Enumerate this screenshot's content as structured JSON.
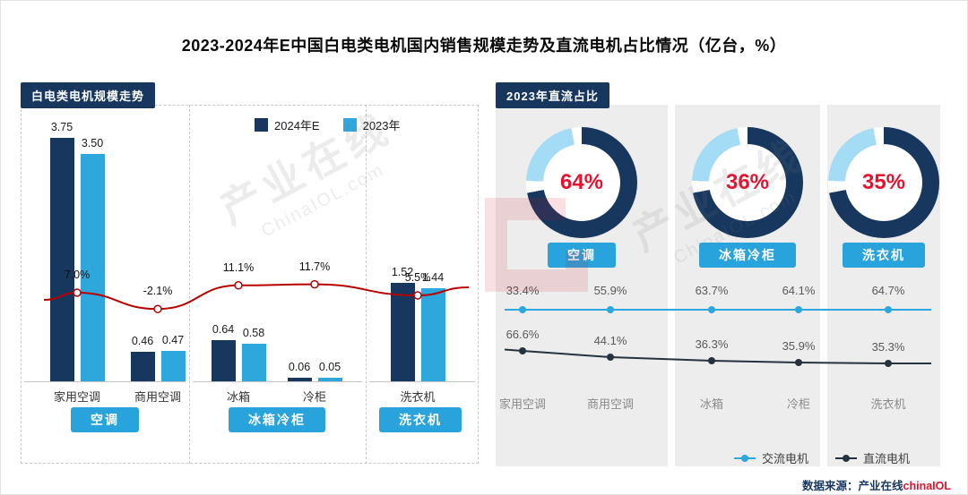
{
  "title": "2023-2024年E中国白电类电机国内销售规模走势及直流电机占比情况（亿台，%）",
  "colors": {
    "navy": "#17375e",
    "bar_blue": "#2ea7dc",
    "badge_blue": "#29a3db",
    "light_blue_arc": "#a5dcf5",
    "growth_line_red": "#b80000",
    "pct_red": "#e8112d",
    "panel_gray": "#ededed",
    "label_gray": "#595959",
    "dark_line": "#26323e"
  },
  "left_panel": {
    "header": "白电类电机规模走势",
    "legend": [
      {
        "label": "2024年E"
      },
      {
        "label": "2023年"
      }
    ],
    "group_badges": [
      "空调",
      "冰箱冷柜",
      "洗衣机"
    ]
  },
  "right_panel": {
    "header": "2023年直流占比",
    "donuts": [
      {
        "label": "空调",
        "pct": "64%"
      },
      {
        "label": "冰箱冷柜",
        "pct": "36%"
      },
      {
        "label": "洗衣机",
        "pct": "35%"
      }
    ],
    "legend": [
      {
        "label": "交流电机"
      },
      {
        "label": "直流电机"
      }
    ]
  },
  "source": {
    "prefix": "数据来源：产业在线",
    "brand": "chinaIOL"
  },
  "watermark": {
    "cn": "产业在线",
    "en": "ChinaIOL.com"
  },
  "chart_data": [
    {
      "type": "bar",
      "title": "白电类电机规模走势",
      "unit": "亿台",
      "categories": [
        "家用空调",
        "商用空调",
        "冰箱",
        "冷柜",
        "洗衣机"
      ],
      "series": [
        {
          "name": "2024年E",
          "values": [
            3.75,
            0.46,
            0.64,
            0.06,
            1.52
          ]
        },
        {
          "name": "2023年",
          "values": [
            3.5,
            0.47,
            0.58,
            0.05,
            1.44
          ]
        }
      ],
      "growth": {
        "values_pct": [
          7.0,
          -2.1,
          11.1,
          11.7,
          5.5
        ]
      },
      "legend_position": "top"
    },
    {
      "type": "pie",
      "title": "2023年直流占比",
      "categories": [
        "空调",
        "冰箱冷柜",
        "洗衣机"
      ],
      "values": [
        64,
        36,
        35
      ],
      "unit": "%"
    },
    {
      "type": "line",
      "categories": [
        "家用空调",
        "商用空调",
        "冰箱",
        "冷柜",
        "洗衣机"
      ],
      "series": [
        {
          "name": "交流电机",
          "values": [
            33.4,
            55.9,
            63.7,
            64.1,
            64.7
          ]
        },
        {
          "name": "直流电机",
          "values": [
            66.6,
            44.1,
            36.3,
            35.9,
            35.3
          ]
        }
      ],
      "unit": "%",
      "legend_position": "bottom-right"
    }
  ]
}
